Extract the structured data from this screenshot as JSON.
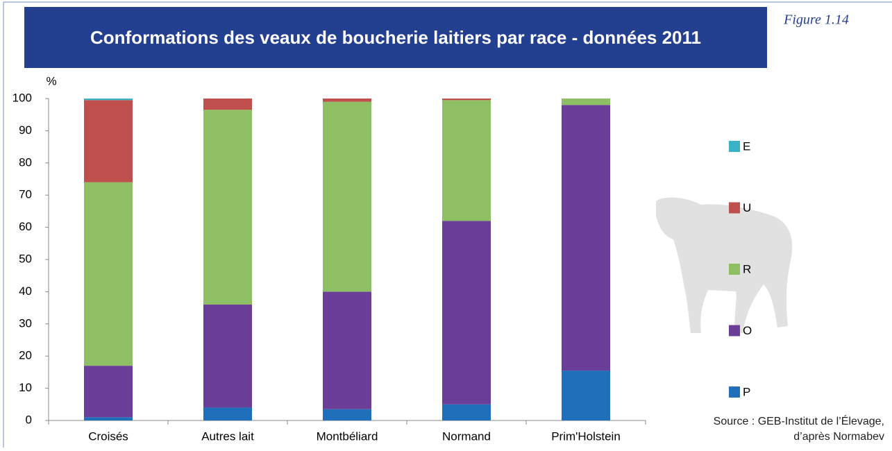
{
  "chart_data": {
    "type": "stacked-bar",
    "title": "Conformations des veaux de boucherie laitiers par race - données 2011",
    "figure_label": "Figure  1.14",
    "ylabel": "%",
    "source": [
      "Source : GEB-Institut de l’Élevage,",
      "d’après Normabev"
    ],
    "categories": [
      "Croisés",
      "Autres lait",
      "Montbéliard",
      "Normand",
      "Prim'Holstein"
    ],
    "series": [
      {
        "name": "P",
        "color": "#1f6fba",
        "values": [
          1,
          4,
          3.5,
          5,
          15.5
        ]
      },
      {
        "name": "O",
        "color": "#6b3f98",
        "values": [
          16,
          32,
          36.5,
          57,
          82.5
        ]
      },
      {
        "name": "R",
        "color": "#8fbf65",
        "values": [
          57,
          60.5,
          59,
          37.5,
          2
        ]
      },
      {
        "name": "U",
        "color": "#c0504d",
        "values": [
          25.5,
          3.5,
          1,
          0.5,
          0
        ]
      },
      {
        "name": "E",
        "color": "#3bb0c9",
        "values": [
          0.5,
          0,
          0,
          0,
          0
        ]
      }
    ],
    "ylim": [
      0,
      100
    ],
    "yticks": [
      0,
      10,
      20,
      30,
      40,
      50,
      60,
      70,
      80,
      90,
      100
    ],
    "grid": false
  }
}
